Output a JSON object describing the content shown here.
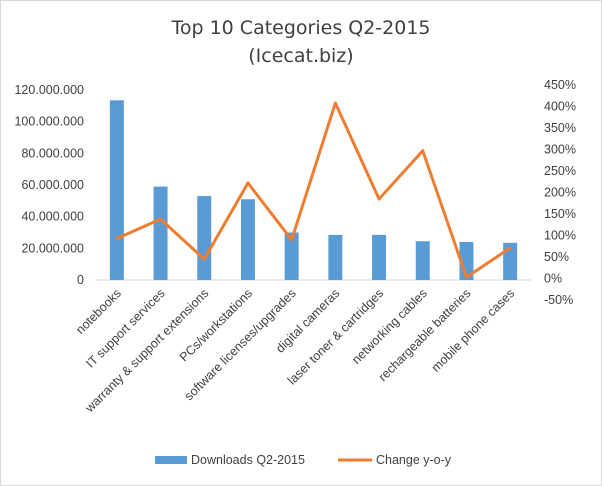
{
  "chart_data": {
    "type": "bar",
    "title": "Top 10 Categories Q2-2015",
    "subtitle": "(Icecat.biz)",
    "categories": [
      "notebooks",
      "IT support services",
      "warranty & support extensions",
      "PCs/workstations",
      "software licenses/upgrades",
      "digital cameras",
      "laser toner & cartridges",
      "networking cables",
      "rechargeable batteries",
      "mobile phone cases"
    ],
    "series": [
      {
        "name": "Downloads Q2-2015",
        "type": "bar",
        "axis": "left",
        "color": "#5B9BD5",
        "values": [
          113500000,
          59000000,
          53000000,
          51000000,
          30000000,
          28500000,
          28500000,
          24500000,
          24000000,
          23500000
        ]
      },
      {
        "name": "Change y-o-y",
        "type": "line",
        "axis": "right",
        "color": "#ED7D31",
        "values": [
          93,
          138,
          45,
          222,
          90,
          408,
          185,
          297,
          3,
          71
        ]
      }
    ],
    "y_left": {
      "ylim": [
        0,
        120000000
      ],
      "ticks": [
        "0",
        "20.000.000",
        "40.000.000",
        "60.000.000",
        "80.000.000",
        "100.000.000",
        "120.000.000"
      ]
    },
    "y_right": {
      "ylim": [
        -50,
        450
      ],
      "ticks": [
        "-50%",
        "0%",
        "50%",
        "100%",
        "150%",
        "200%",
        "250%",
        "300%",
        "350%",
        "400%",
        "450%"
      ]
    },
    "grid": false,
    "legend": "bottom"
  }
}
